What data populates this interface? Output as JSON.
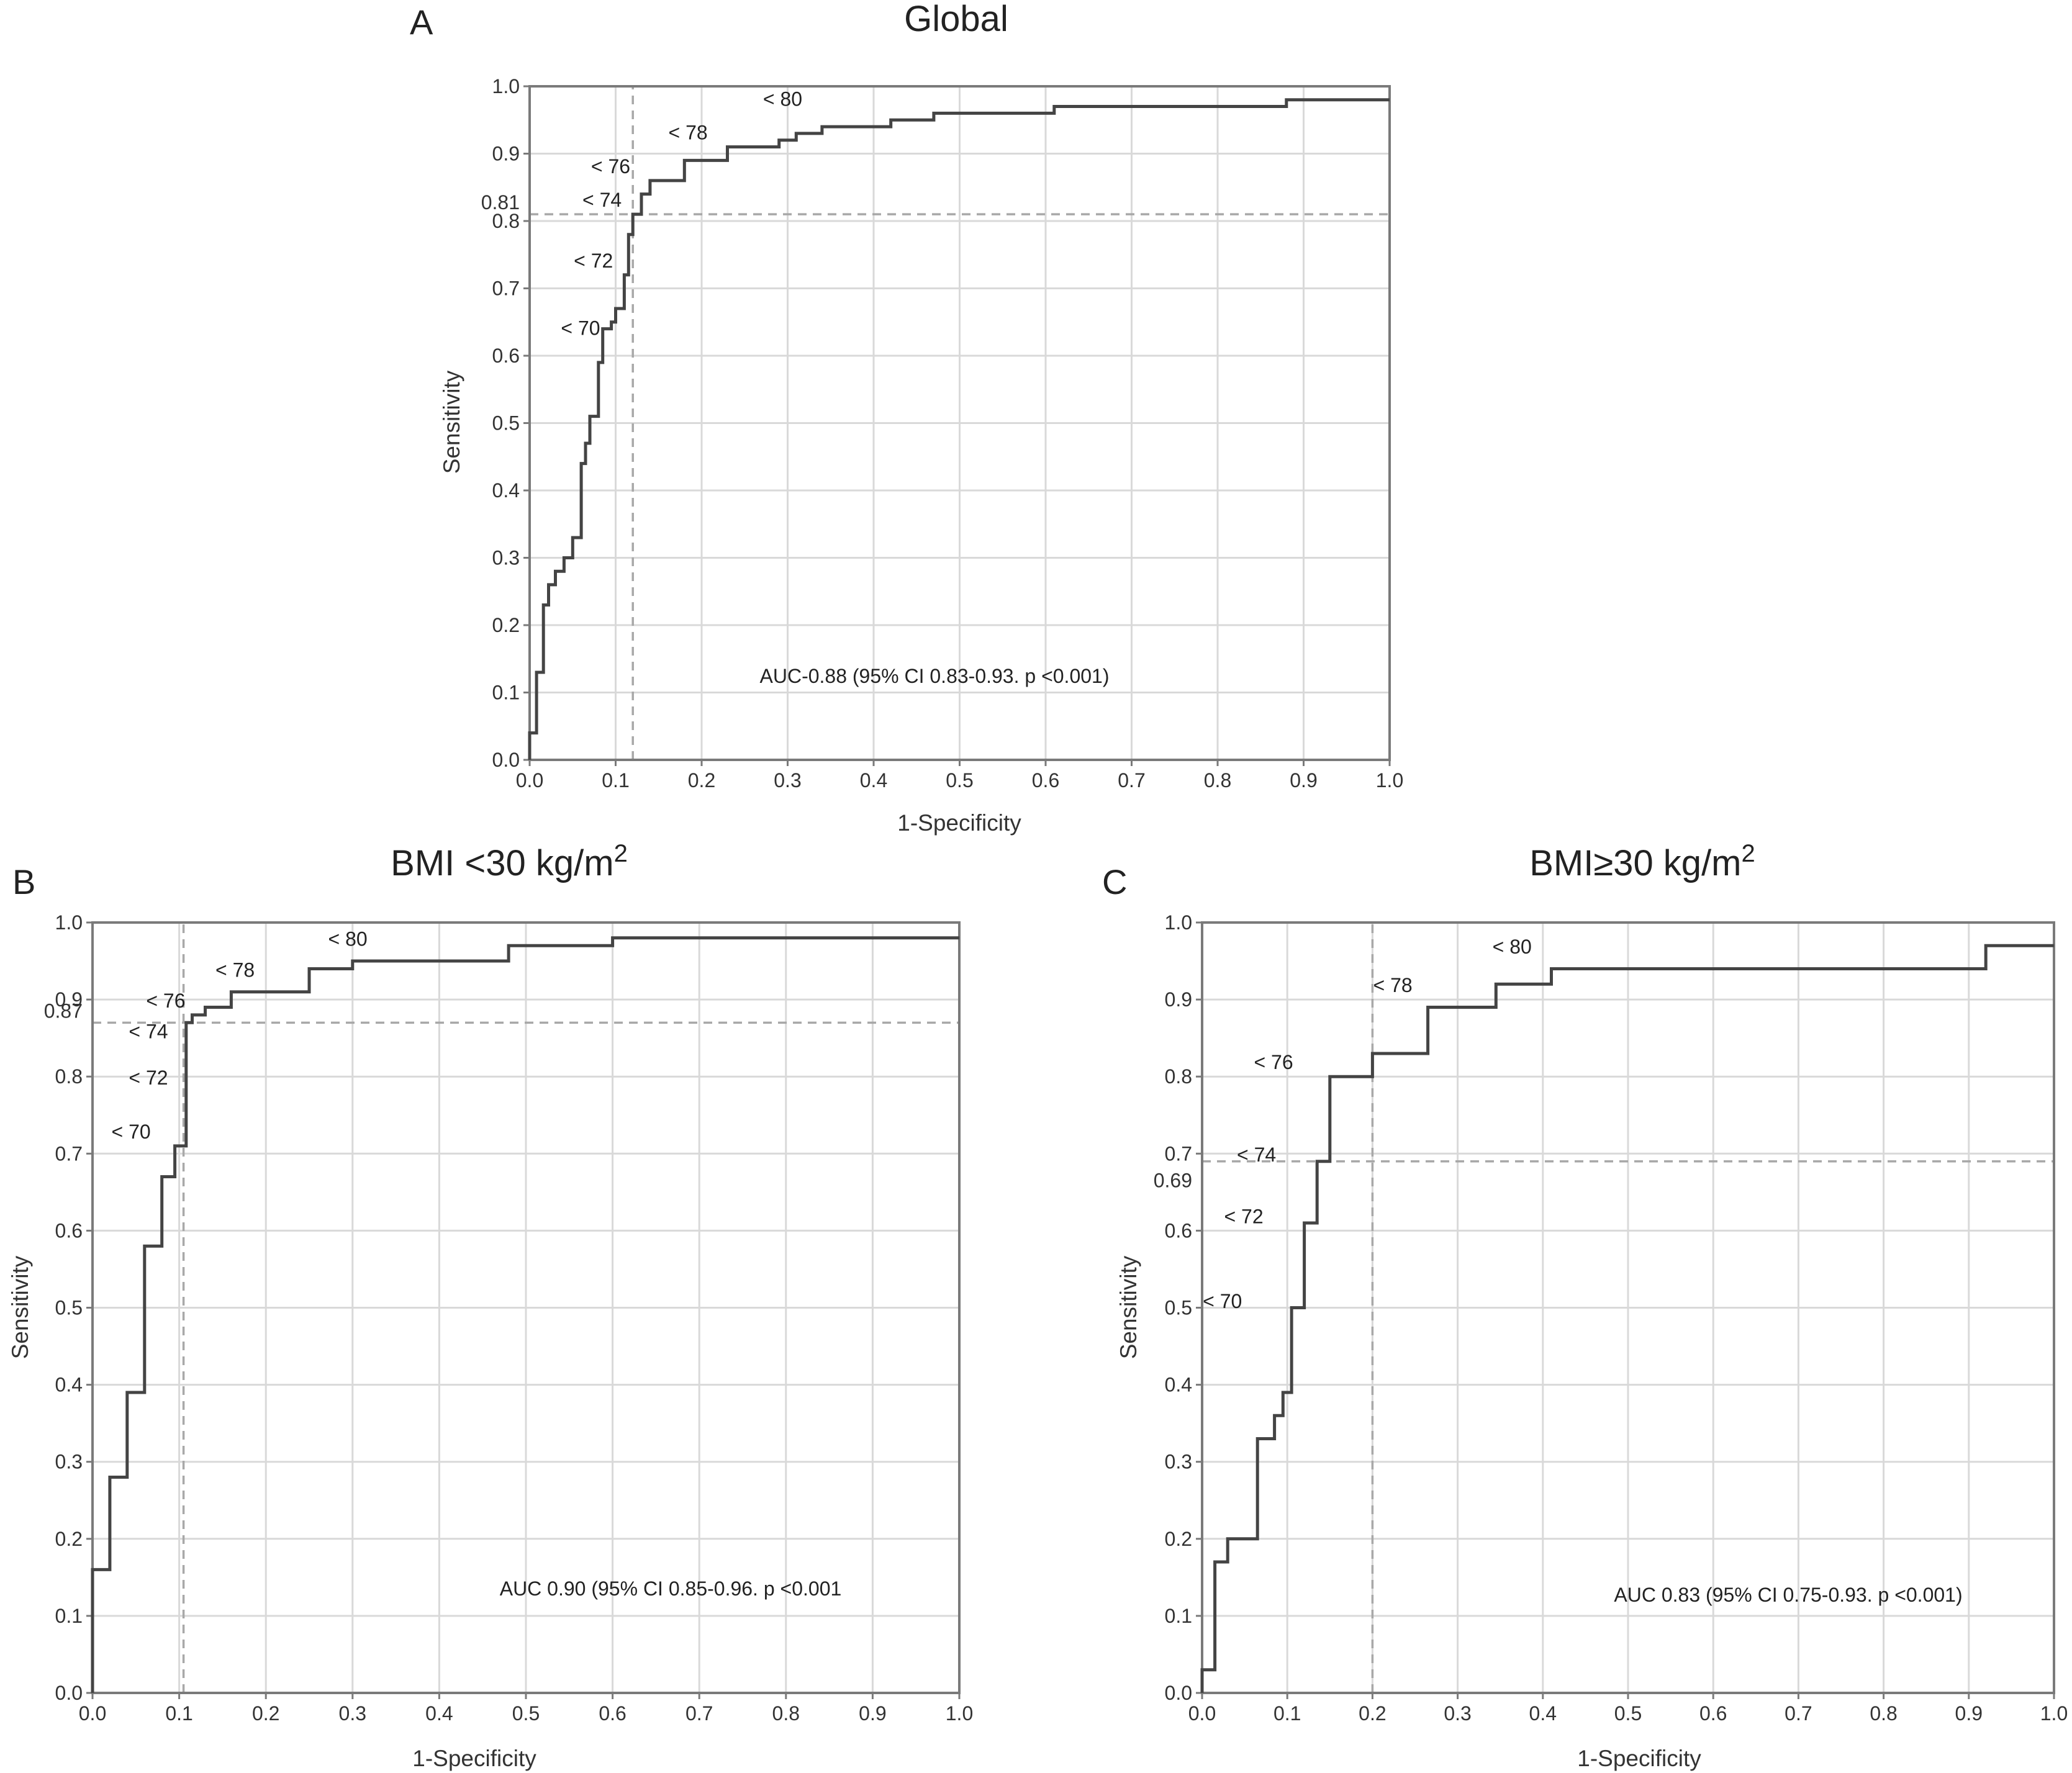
{
  "chart_data": [
    {
      "panel": "A",
      "type": "line",
      "title": "Global",
      "xlabel": "1-Specificity",
      "ylabel": "Sensitivity",
      "xlim": [
        0,
        1
      ],
      "ylim": [
        0,
        1
      ],
      "x_ticks": [
        "0.0",
        "0.1",
        "0.2",
        "0.3",
        "0.4",
        "0.5",
        "0.6",
        "0.7",
        "0.8",
        "0.9",
        "1.0"
      ],
      "y_ticks": [
        "0.0",
        "0.1",
        "0.2",
        "0.3",
        "0.4",
        "0.5",
        "0.6",
        "0.7",
        "0.8",
        "0.9",
        "1.0"
      ],
      "grid": true,
      "annotation": "AUC-0.88 (95% CI 0.83-0.93. p <0.001)",
      "cutoff_x": 0.12,
      "cutoff_y": 0.81,
      "cutoff_y_label": "0.81",
      "cut_labels": [
        {
          "text": "< 70",
          "x": 0.095,
          "y": 0.62
        },
        {
          "text": "< 72",
          "x": 0.11,
          "y": 0.72
        },
        {
          "text": "< 74",
          "x": 0.12,
          "y": 0.81
        },
        {
          "text": "< 76",
          "x": 0.13,
          "y": 0.86
        },
        {
          "text": "< 78",
          "x": 0.22,
          "y": 0.91
        },
        {
          "text": "< 80",
          "x": 0.33,
          "y": 0.96
        }
      ],
      "series": [
        {
          "x": [
            0,
            0,
            0.008,
            0.008,
            0.016,
            0.016,
            0.022,
            0.022,
            0.03,
            0.03,
            0.04,
            0.04,
            0.05,
            0.05,
            0.06,
            0.06,
            0.065,
            0.065,
            0.07,
            0.07,
            0.08,
            0.08,
            0.085,
            0.085,
            0.095,
            0.095,
            0.1,
            0.1,
            0.11,
            0.11,
            0.115,
            0.115,
            0.12,
            0.12,
            0.13,
            0.13,
            0.14,
            0.14,
            0.16,
            0.16,
            0.18,
            0.18,
            0.23,
            0.23,
            0.29,
            0.29,
            0.31,
            0.31,
            0.34,
            0.34,
            0.42,
            0.42,
            0.47,
            0.47,
            0.61,
            0.61,
            0.88,
            0.88,
            1.0
          ],
          "y": [
            0,
            0.04,
            0.04,
            0.13,
            0.13,
            0.23,
            0.23,
            0.26,
            0.26,
            0.28,
            0.28,
            0.3,
            0.3,
            0.33,
            0.33,
            0.44,
            0.44,
            0.47,
            0.47,
            0.51,
            0.51,
            0.59,
            0.59,
            0.64,
            0.64,
            0.65,
            0.65,
            0.67,
            0.67,
            0.72,
            0.72,
            0.78,
            0.78,
            0.81,
            0.81,
            0.84,
            0.84,
            0.86,
            0.86,
            0.86,
            0.86,
            0.89,
            0.89,
            0.91,
            0.91,
            0.92,
            0.92,
            0.93,
            0.93,
            0.94,
            0.94,
            0.95,
            0.95,
            0.96,
            0.96,
            0.97,
            0.97,
            0.98,
            0.98
          ]
        }
      ]
    },
    {
      "panel": "B",
      "type": "line",
      "title": "BMI <30 kg/m",
      "title_sup": "2",
      "xlabel": "1-Specificity",
      "ylabel": "Sensitivity",
      "xlim": [
        0,
        1
      ],
      "ylim": [
        0,
        1
      ],
      "x_ticks": [
        "0.0",
        "0.1",
        "0.2",
        "0.3",
        "0.4",
        "0.5",
        "0.6",
        "0.7",
        "0.8",
        "0.9",
        "1.0"
      ],
      "y_ticks": [
        "0.0",
        "0.1",
        "0.2",
        "0.3",
        "0.4",
        "0.5",
        "0.6",
        "0.7",
        "0.8",
        "0.9",
        "1.0"
      ],
      "grid": true,
      "annotation": "AUC 0.90 (95% CI 0.85-0.96. p <0.001",
      "cutoff_x": 0.105,
      "cutoff_y": 0.87,
      "cutoff_y_label": "0.87",
      "cut_labels": [
        {
          "text": "< 70",
          "x": 0.08,
          "y": 0.71
        },
        {
          "text": "< 72",
          "x": 0.1,
          "y": 0.78
        },
        {
          "text": "< 74",
          "x": 0.1,
          "y": 0.84
        },
        {
          "text": "< 76",
          "x": 0.12,
          "y": 0.88
        },
        {
          "text": "< 78",
          "x": 0.2,
          "y": 0.92
        },
        {
          "text": "< 80",
          "x": 0.33,
          "y": 0.96
        }
      ],
      "series": [
        {
          "x": [
            0,
            0,
            0.005,
            0.005,
            0.02,
            0.02,
            0.04,
            0.04,
            0.06,
            0.06,
            0.08,
            0.08,
            0.095,
            0.095,
            0.108,
            0.108,
            0.115,
            0.115,
            0.13,
            0.13,
            0.16,
            0.16,
            0.25,
            0.25,
            0.3,
            0.3,
            0.48,
            0.48,
            0.6,
            0.6,
            1.0
          ],
          "y": [
            0,
            0.16,
            0.16,
            0.16,
            0.16,
            0.28,
            0.28,
            0.39,
            0.39,
            0.58,
            0.58,
            0.67,
            0.67,
            0.71,
            0.71,
            0.87,
            0.87,
            0.88,
            0.88,
            0.89,
            0.89,
            0.91,
            0.91,
            0.94,
            0.94,
            0.95,
            0.95,
            0.97,
            0.97,
            0.98,
            0.98
          ]
        }
      ]
    },
    {
      "panel": "C",
      "type": "line",
      "title": "BMI≥30 kg/m",
      "title_sup": "2",
      "xlabel": "1-Specificity",
      "ylabel": "Sensitivity",
      "xlim": [
        0,
        1
      ],
      "ylim": [
        0,
        1
      ],
      "x_ticks": [
        "0.0",
        "0.1",
        "0.2",
        "0.3",
        "0.4",
        "0.5",
        "0.6",
        "0.7",
        "0.8",
        "0.9",
        "1.0"
      ],
      "y_ticks": [
        "0.0",
        "0.1",
        "0.2",
        "0.3",
        "0.4",
        "0.5",
        "0.6",
        "0.7",
        "0.8",
        "0.9",
        "1.0"
      ],
      "grid": true,
      "annotation": "AUC 0.83 (95% CI 0.75-0.93. p <0.001)",
      "cutoff_x": 0.2,
      "cutoff_y": 0.69,
      "cutoff_y_label": "0.69",
      "cut_labels": [
        {
          "text": "< 70",
          "x": 0.06,
          "y": 0.49
        },
        {
          "text": "< 72",
          "x": 0.085,
          "y": 0.6
        },
        {
          "text": "< 74",
          "x": 0.1,
          "y": 0.68
        },
        {
          "text": "< 76",
          "x": 0.12,
          "y": 0.8
        },
        {
          "text": "< 78",
          "x": 0.26,
          "y": 0.9
        },
        {
          "text": "< 80",
          "x": 0.4,
          "y": 0.95
        }
      ],
      "series": [
        {
          "x": [
            0,
            0,
            0.015,
            0.015,
            0.03,
            0.03,
            0.065,
            0.065,
            0.085,
            0.085,
            0.095,
            0.095,
            0.105,
            0.105,
            0.12,
            0.12,
            0.135,
            0.135,
            0.15,
            0.15,
            0.2,
            0.2,
            0.265,
            0.265,
            0.345,
            0.345,
            0.41,
            0.41,
            0.92,
            0.92,
            1.0
          ],
          "y": [
            0,
            0.03,
            0.03,
            0.17,
            0.17,
            0.2,
            0.2,
            0.33,
            0.33,
            0.36,
            0.36,
            0.39,
            0.39,
            0.5,
            0.5,
            0.61,
            0.61,
            0.69,
            0.69,
            0.8,
            0.8,
            0.83,
            0.83,
            0.89,
            0.89,
            0.92,
            0.92,
            0.94,
            0.94,
            0.97,
            0.97
          ]
        }
      ]
    }
  ]
}
